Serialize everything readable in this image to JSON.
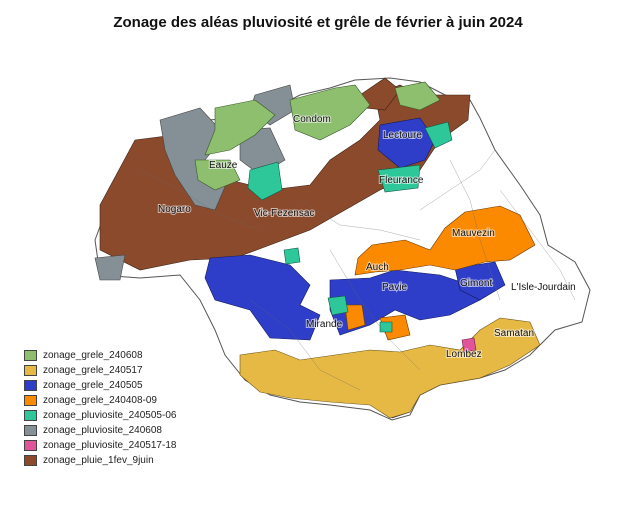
{
  "title": "Zonage des aléas pluviosité et grêle de février à juin 2024",
  "legend": [
    {
      "label": "zonage_grele_240608",
      "color": "#8dbf6e"
    },
    {
      "label": "zonage_grele_240517",
      "color": "#e6b945"
    },
    {
      "label": "zonage_grele_240505",
      "color": "#2f3ec8"
    },
    {
      "label": "zonage_grele_240408-09",
      "color": "#fb8a00"
    },
    {
      "label": "zonage_pluviosite_240505-06",
      "color": "#2ec79a"
    },
    {
      "label": "zonage_pluviosite_240608",
      "color": "#858f96"
    },
    {
      "label": "zonage_pluviosite_240517-18",
      "color": "#e0559a"
    },
    {
      "label": "zonage_pluie_1fev_9juin",
      "color": "#8c4a2c"
    }
  ],
  "cities": {
    "condom": "Condom",
    "lectoure": "Lectoure",
    "eauze": "Eauze",
    "fleurance": "Fleurance",
    "nogaro": "Nogaro",
    "vic_fezensac": "Vic-Fezensac",
    "mauvezin": "Mauvezin",
    "auch": "Auch",
    "pavie": "Pavie",
    "gimont": "Gimont",
    "isle_jourdain": "L'Isle-Jourdain",
    "mirande": "Mirande",
    "samatan": "Samatan",
    "lombez": "Lombez"
  }
}
